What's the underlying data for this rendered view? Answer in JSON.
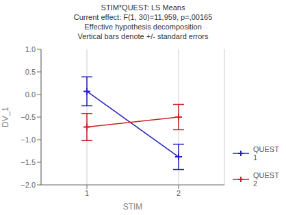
{
  "chart_data": {
    "type": "line",
    "title": "STIM*QUEST: LS Means\nCurrent effect: F(1, 30)=11,959, p=,00165\nEffective hypothesis decomposition\nVertical bars denote +/- standard errors",
    "x_label": "STIM",
    "y_label": "DV_1",
    "xlim": [
      0.5,
      2.5
    ],
    "ylim": [
      -2.0,
      1.0
    ],
    "xticks": [
      1,
      2
    ],
    "yticks": [
      {
        "value": 1.0,
        "label": "1.0"
      },
      {
        "value": 0.5,
        "label": "0.5"
      },
      {
        "value": 0.0,
        "label": "0.0"
      },
      {
        "value": -0.5,
        "label": "−0.5"
      },
      {
        "value": -1.0,
        "label": "−1.0"
      },
      {
        "value": -1.5,
        "label": "−1.5"
      },
      {
        "value": -2.0,
        "label": "−2.0"
      }
    ],
    "grid": "x",
    "legend": "right",
    "series": [
      {
        "name": "QUEST\n1",
        "color": "#2222bb",
        "marker": "plus",
        "x": [
          1,
          2
        ],
        "values": [
          0.07,
          -1.38
        ],
        "errors": [
          0.32,
          0.28
        ]
      },
      {
        "name": "QUEST\n2",
        "color": "#cc2222",
        "marker": "plus",
        "x": [
          1,
          2
        ],
        "values": [
          -0.72,
          -0.5
        ],
        "errors": [
          0.3,
          0.28
        ]
      }
    ]
  }
}
